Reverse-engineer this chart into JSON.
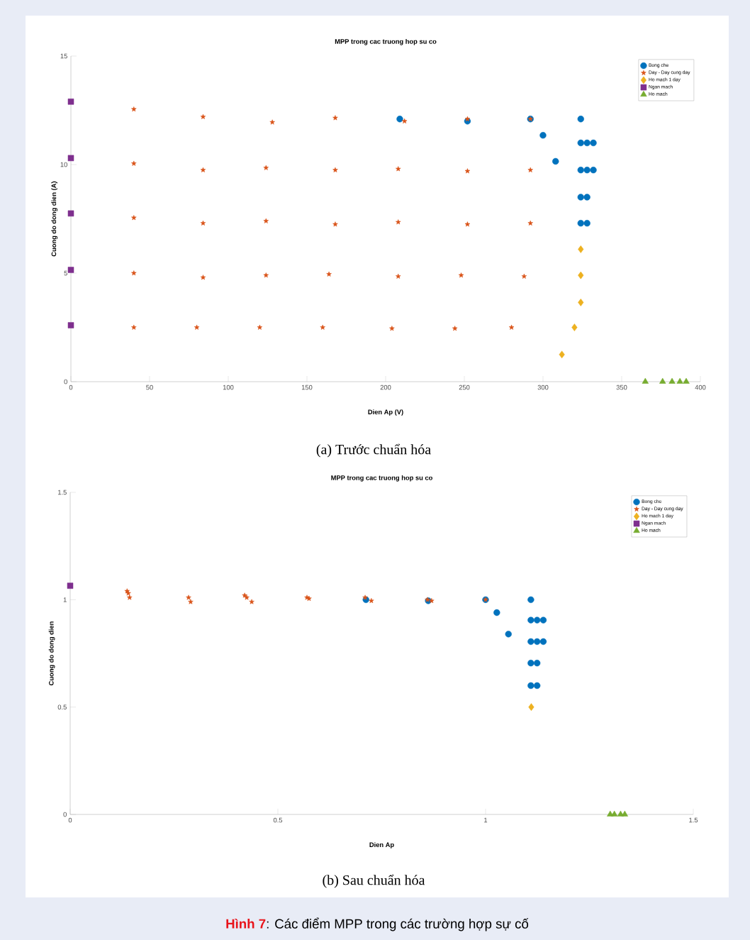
{
  "chart_data": [
    {
      "type": "scatter",
      "title": "MPP trong cac truong hop su co",
      "xlabel": "Dien Ap (V)",
      "ylabel": "Cuong do dong dien (A)",
      "xlim": [
        0,
        400
      ],
      "ylim": [
        0,
        15
      ],
      "xticks": [
        0,
        50,
        100,
        150,
        200,
        250,
        300,
        350,
        400
      ],
      "yticks": [
        0,
        5,
        10,
        15
      ],
      "legend": "top right",
      "annotations": [
        "(a) Trước chuẩn hóa"
      ],
      "series": [
        {
          "name": "Bong che",
          "color": "#0072bd",
          "marker": "circle",
          "x": [
            209,
            252,
            292,
            300,
            308,
            324,
            324,
            328,
            332,
            324,
            328,
            332,
            324,
            328,
            324,
            328
          ],
          "values": [
            12.1,
            12.0,
            12.1,
            11.35,
            10.15,
            12.1,
            11.0,
            11.0,
            11.0,
            9.75,
            9.75,
            9.75,
            8.5,
            8.5,
            7.3,
            7.3
          ]
        },
        {
          "name": "Day - Day cung day",
          "color": "#d95319",
          "marker": "star",
          "x": [
            40,
            84,
            128,
            168,
            212,
            252,
            292,
            40,
            84,
            124,
            168,
            208,
            252,
            292,
            40,
            84,
            124,
            168,
            208,
            252,
            292,
            40,
            84,
            124,
            164,
            208,
            248,
            288,
            40,
            80,
            120,
            160,
            204,
            244,
            280
          ],
          "values": [
            12.55,
            12.2,
            11.95,
            12.15,
            12.0,
            12.1,
            12.1,
            10.05,
            9.75,
            9.85,
            9.75,
            9.8,
            9.7,
            9.75,
            7.55,
            7.3,
            7.4,
            7.25,
            7.35,
            7.25,
            7.3,
            5.0,
            4.8,
            4.9,
            4.95,
            4.85,
            4.9,
            4.85,
            2.5,
            2.5,
            2.5,
            2.5,
            2.45,
            2.45,
            2.5
          ]
        },
        {
          "name": "Ho mach 1 day",
          "color": "#edb120",
          "marker": "diamond",
          "x": [
            324,
            324,
            324,
            320,
            312
          ],
          "values": [
            6.1,
            4.9,
            3.65,
            2.5,
            1.25
          ]
        },
        {
          "name": "Ngan mach",
          "color": "#7e2f8e",
          "marker": "square",
          "x": [
            0,
            0,
            0,
            0,
            0
          ],
          "values": [
            12.9,
            10.3,
            7.75,
            5.15,
            2.6
          ]
        },
        {
          "name": "Ho mach",
          "color": "#77ac30",
          "marker": "triangle",
          "x": [
            365,
            376,
            382,
            387,
            391
          ],
          "values": [
            0,
            0,
            0,
            0,
            0
          ]
        }
      ]
    },
    {
      "type": "scatter",
      "title": "MPP trong cac truong hop su co",
      "xlabel": "Dien Ap",
      "ylabel": "Cuong do dong dien",
      "xlim": [
        0,
        1.5
      ],
      "ylim": [
        0,
        1.5
      ],
      "xticks": [
        0,
        0.5,
        1,
        1.5
      ],
      "yticks": [
        0,
        0.5,
        1,
        1.5
      ],
      "legend": "top right",
      "annotations": [
        "(b) Sau chuẩn hóa",
        "**Hình 7**: Các điểm MPP trong các trường hợp sự cố"
      ],
      "series": [
        {
          "name": "Bong che",
          "color": "#0072bd",
          "marker": "circle",
          "x": [
            0.712,
            0.862,
            1.0,
            1.027,
            1.055,
            1.109,
            1.109,
            1.124,
            1.139,
            1.109,
            1.124,
            1.139,
            1.109,
            1.124,
            1.109,
            1.124
          ],
          "values": [
            1.0,
            0.995,
            1.0,
            0.94,
            0.84,
            1.0,
            0.905,
            0.905,
            0.905,
            0.805,
            0.805,
            0.805,
            0.705,
            0.705,
            0.6,
            0.6
          ]
        },
        {
          "name": "Day - Day cung day",
          "color": "#d95319",
          "marker": "star",
          "x": [
            0.137,
            0.14,
            0.143,
            0.285,
            0.29,
            0.42,
            0.425,
            0.437,
            0.57,
            0.575,
            0.71,
            0.725,
            0.86,
            0.87,
            1.0
          ],
          "values": [
            1.04,
            1.03,
            1.01,
            1.01,
            0.99,
            1.02,
            1.01,
            0.99,
            1.01,
            1.005,
            1.01,
            0.995,
            1.0,
            0.995,
            1.0
          ]
        },
        {
          "name": "Ho mach 1 day",
          "color": "#edb120",
          "marker": "diamond",
          "x": [
            1.11
          ],
          "values": [
            0.5
          ]
        },
        {
          "name": "Ngan mach",
          "color": "#7e2f8e",
          "marker": "square",
          "x": [
            0
          ],
          "values": [
            1.065
          ]
        },
        {
          "name": "Ho mach",
          "color": "#77ac30",
          "marker": "triangle",
          "x": [
            1.3,
            1.31,
            1.325,
            1.335
          ],
          "values": [
            0,
            0,
            0,
            0
          ]
        }
      ]
    }
  ]
}
